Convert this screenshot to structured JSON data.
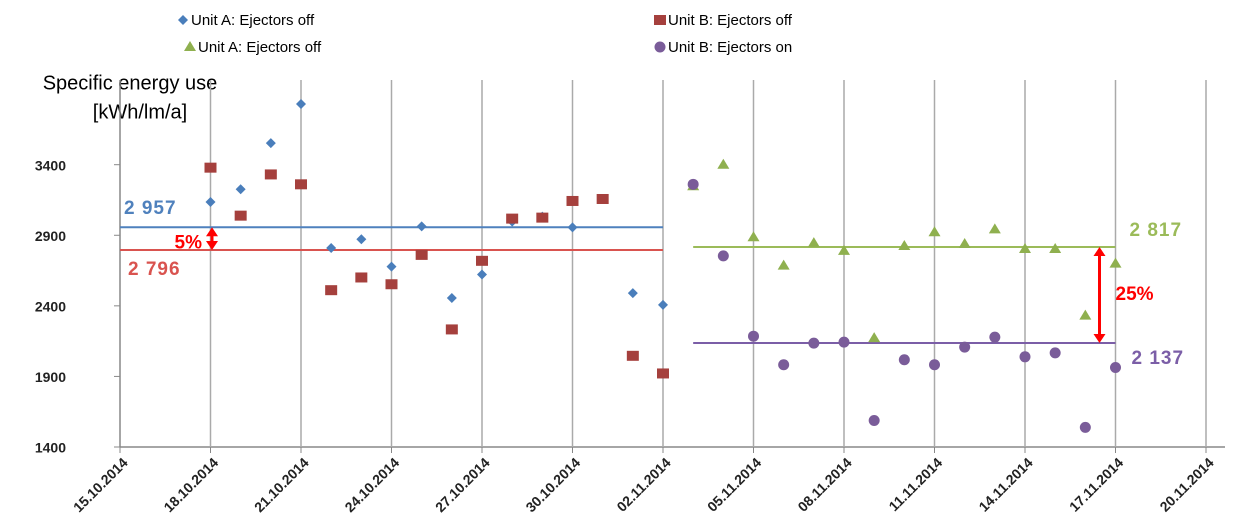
{
  "chart_data": {
    "type": "scatter",
    "ylabel": [
      "Specific energy use",
      "[kWh/lm/a]"
    ],
    "xlim": [
      "15.10.2014",
      "20.11.2014"
    ],
    "xticks": [
      "15.10.2014",
      "18.10.2014",
      "21.10.2014",
      "24.10.2014",
      "27.10.2014",
      "30.10.2014",
      "02.11.2014",
      "05.11.2014",
      "08.11.2014",
      "11.11.2014",
      "14.11.2014",
      "17.11.2014",
      "20.11.2014"
    ],
    "ylim": [
      1400,
      4000
    ],
    "yticks": [
      1400,
      1900,
      2400,
      2900,
      3400
    ],
    "grid": "x",
    "series": [
      {
        "name": "Unit A: Ejectors off",
        "color": "#4a7ebb",
        "marker": "diamond",
        "x": [
          "18.10.2014",
          "19.10.2014",
          "20.10.2014",
          "21.10.2014",
          "22.10.2014",
          "23.10.2014",
          "24.10.2014",
          "25.10.2014",
          "26.10.2014",
          "27.10.2014",
          "28.10.2014",
          "29.10.2014",
          "30.10.2014",
          "01.11.2014",
          "02.11.2014"
        ],
        "values": [
          3136,
          3226,
          3553,
          3830,
          2810,
          2872,
          2678,
          2963,
          2456,
          2622,
          2997,
          3032,
          2956,
          2490,
          2407
        ]
      },
      {
        "name": "Unit B: Ejectors off",
        "color": "#a5403d",
        "marker": "square",
        "x": [
          "18.10.2014",
          "19.10.2014",
          "20.10.2014",
          "21.10.2014",
          "22.10.2014",
          "23.10.2014",
          "24.10.2014",
          "25.10.2014",
          "26.10.2014",
          "27.10.2014",
          "28.10.2014",
          "29.10.2014",
          "30.10.2014",
          "31.10.2014",
          "01.11.2014",
          "02.11.2014"
        ],
        "values": [
          3379,
          3039,
          3331,
          3261,
          2511,
          2601,
          2553,
          2761,
          2233,
          2719,
          3018,
          3025,
          3143,
          3157,
          2046,
          1921
        ]
      },
      {
        "name": "Unit A: Ejectors off",
        "color": "#8fb04f",
        "marker": "triangle",
        "x": [
          "03.11.2014",
          "04.11.2014",
          "05.11.2014",
          "06.11.2014",
          "07.11.2014",
          "08.11.2014",
          "09.11.2014",
          "10.11.2014",
          "11.11.2014",
          "12.11.2014",
          "13.11.2014",
          "14.11.2014",
          "15.11.2014",
          "16.11.2014",
          "17.11.2014"
        ],
        "values": [
          3247,
          3400,
          2886,
          2685,
          2844,
          2789,
          2171,
          2824,
          2921,
          2838,
          2942,
          2803,
          2803,
          2331,
          2699
        ]
      },
      {
        "name": "Unit B: Ejectors on",
        "color": "#7a5c99",
        "marker": "circle",
        "x": [
          "03.11.2014",
          "04.11.2014",
          "05.11.2014",
          "06.11.2014",
          "07.11.2014",
          "08.11.2014",
          "09.11.2014",
          "10.11.2014",
          "11.11.2014",
          "12.11.2014",
          "13.11.2014",
          "14.11.2014",
          "15.11.2014",
          "16.11.2014",
          "17.11.2014"
        ],
        "values": [
          3261,
          2754,
          2185,
          1983,
          2136,
          2143,
          1588,
          2018,
          1983,
          2108,
          2178,
          2039,
          2067,
          1539,
          1963
        ]
      }
    ],
    "comparisons": [
      {
        "label": "5%",
        "lines": [
          {
            "value": 2957,
            "label": "2 957",
            "color": "#4f81bd",
            "x": [
              "15.10.2014",
              "02.11.2014"
            ]
          },
          {
            "value": 2796,
            "label": "2 796",
            "color": "#d9534f",
            "x": [
              "15.10.2014",
              "02.11.2014"
            ]
          }
        ]
      },
      {
        "label": "25%",
        "lines": [
          {
            "value": 2817,
            "label": "2 817",
            "color": "#9bbb59",
            "x": [
              "03.11.2014",
              "17.11.2014"
            ]
          },
          {
            "value": 2137,
            "label": "2 137",
            "color": "#7b5ea7",
            "x": [
              "03.11.2014",
              "17.11.2014"
            ]
          }
        ]
      }
    ]
  }
}
